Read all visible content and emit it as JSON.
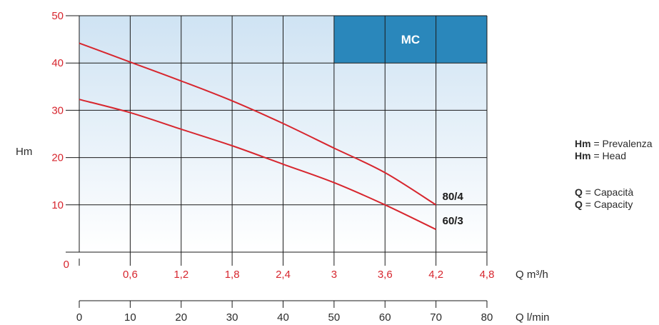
{
  "chart_data": {
    "type": "line",
    "ylabel": "Hm",
    "ylim": [
      0,
      50
    ],
    "yticks": [
      "0",
      "10",
      "20",
      "30",
      "40",
      "50"
    ],
    "x_primary": {
      "label": "Q m³/h",
      "range": [
        0,
        4.8
      ],
      "ticks": [
        "0,6",
        "1,2",
        "1,8",
        "2,4",
        "3",
        "3,6",
        "4,2",
        "4,8"
      ],
      "tick_values": [
        0.6,
        1.2,
        1.8,
        2.4,
        3.0,
        3.6,
        4.2,
        4.8
      ]
    },
    "x_secondary": {
      "label": "Q l/min",
      "range": [
        0,
        80
      ],
      "ticks": [
        "0",
        "10",
        "20",
        "30",
        "40",
        "50",
        "60",
        "70",
        "80"
      ],
      "tick_values": [
        0,
        10,
        20,
        30,
        40,
        50,
        60,
        70,
        80
      ]
    },
    "grid": true,
    "badge": "MC",
    "series": [
      {
        "name": "80/4",
        "x": [
          0,
          0.6,
          1.2,
          1.8,
          2.4,
          3.0,
          3.6,
          4.2
        ],
        "y": [
          44.2,
          40.2,
          36.2,
          32.0,
          27.2,
          22.0,
          16.8,
          10.0
        ]
      },
      {
        "name": "60/3",
        "x": [
          0,
          0.6,
          1.2,
          1.8,
          2.4,
          3.0,
          3.6,
          4.2
        ],
        "y": [
          32.3,
          29.5,
          26.0,
          22.5,
          18.6,
          14.7,
          10.0,
          4.8
        ]
      }
    ]
  },
  "colors": {
    "curve": "#d7262e",
    "badge": "#2a87bb",
    "grid": "#1a1a1a",
    "plot_top": "#cfe3f3",
    "plot_bottom": "#ffffff"
  },
  "legend": {
    "hm_key": "Hm",
    "hm_it": "= Prevalenza",
    "hm_en": "= Head",
    "q_key": "Q",
    "q_it": "= Capacità",
    "q_en": "= Capacity"
  }
}
